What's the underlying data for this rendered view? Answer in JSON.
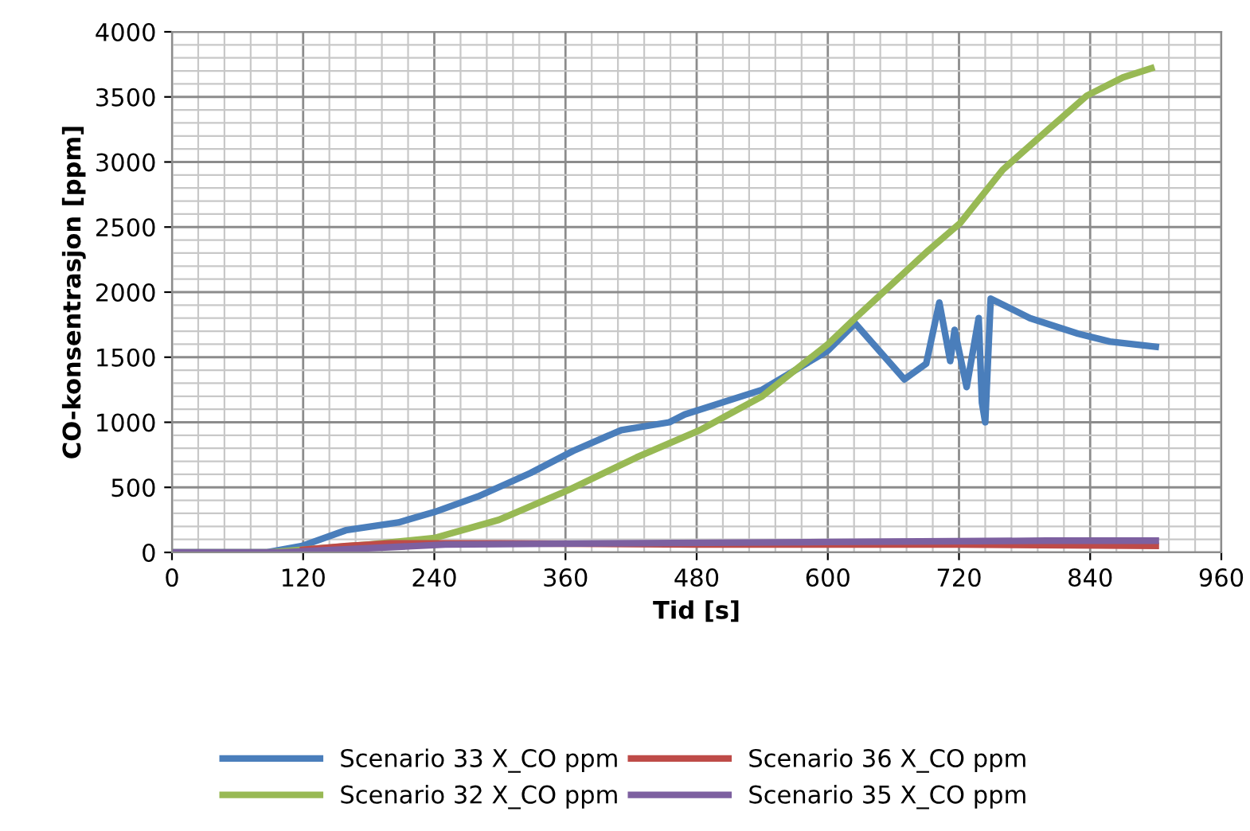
{
  "chart_data": {
    "type": "line",
    "xlabel": "Tid [s]",
    "ylabel": "CO-konsentrasjon [ppm]",
    "xlim": [
      0,
      960
    ],
    "xticks": [
      0,
      120,
      240,
      360,
      480,
      600,
      720,
      840,
      960
    ],
    "ylim": [
      0,
      4000
    ],
    "yticks": [
      0,
      500,
      1000,
      1500,
      2000,
      2500,
      3000,
      3500,
      4000
    ],
    "grid": true,
    "legend": "bottom",
    "marker": "none",
    "line_style": "solid",
    "series": [
      {
        "name": "Scenario 33 X_CO ppm",
        "color": "#4a7ebb",
        "x": [
          0,
          86,
          119,
          159,
          207,
          240,
          280,
          328,
          367,
          411,
          455,
          469,
          540,
          600,
          625,
          670,
          690,
          702,
          712,
          716,
          727,
          738,
          741,
          744,
          749,
          785,
          829,
          858,
          900
        ],
        "values": [
          0,
          0,
          50,
          170,
          230,
          310,
          430,
          610,
          780,
          940,
          1000,
          1060,
          1250,
          1550,
          1760,
          1330,
          1450,
          1920,
          1470,
          1710,
          1270,
          1800,
          1150,
          1000,
          1950,
          1800,
          1680,
          1620,
          1580
        ]
      },
      {
        "name": "Scenario 32 X_CO ppm",
        "color": "#98b954",
        "x": [
          0,
          90,
          119,
          180,
          240,
          299,
          363,
          425,
          483,
          540,
          600,
          625,
          692,
          721,
          760,
          799,
          837,
          870,
          896
        ],
        "values": [
          0,
          0,
          20,
          60,
          110,
          250,
          480,
          730,
          940,
          1200,
          1600,
          1800,
          2320,
          2530,
          2940,
          3230,
          3510,
          3650,
          3720
        ]
      },
      {
        "name": "Scenario 36 X_CO ppm",
        "color": "#be4b48",
        "x": [
          120,
          160,
          200,
          300,
          480,
          720,
          900
        ],
        "values": [
          20,
          50,
          70,
          70,
          60,
          60,
          50
        ]
      },
      {
        "name": "Scenario 35 X_CO ppm",
        "color": "#7d60a0",
        "x": [
          0,
          100,
          150,
          250,
          400,
          600,
          800,
          900
        ],
        "values": [
          0,
          0,
          20,
          60,
          70,
          80,
          90,
          90
        ]
      }
    ]
  }
}
